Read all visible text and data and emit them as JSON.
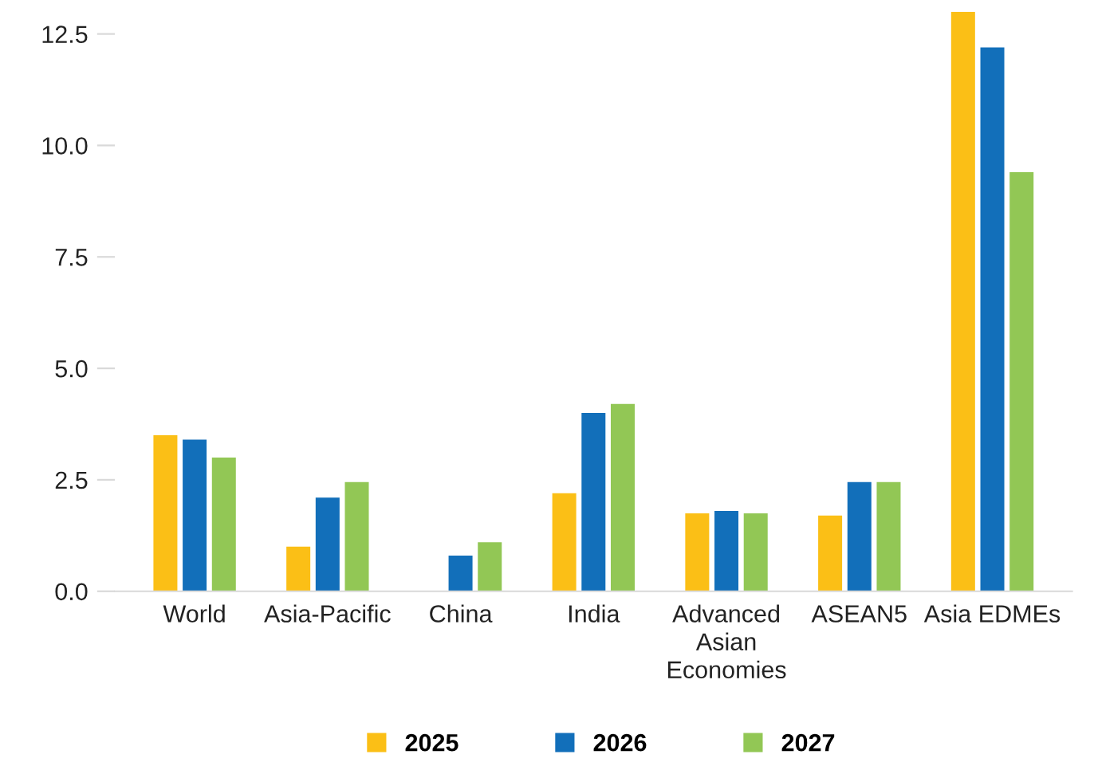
{
  "chart_data": {
    "type": "bar",
    "categories": [
      "World",
      "Asia-Pacific",
      "China",
      "India",
      "Advanced\nAsian\nEconomies",
      "ASEAN5",
      "Asia EDMEs"
    ],
    "series": [
      {
        "name": "2025",
        "color": "#fbbf16",
        "values": [
          3.5,
          1.0,
          null,
          2.2,
          1.75,
          1.7,
          13.0
        ]
      },
      {
        "name": "2026",
        "color": "#126fba",
        "values": [
          3.4,
          2.1,
          0.8,
          4.0,
          1.8,
          2.45,
          12.2
        ]
      },
      {
        "name": "2027",
        "color": "#92c755",
        "values": [
          3.0,
          2.45,
          1.1,
          4.2,
          1.75,
          2.45,
          9.4
        ]
      }
    ],
    "ylim": [
      0,
      13
    ],
    "yticks": [
      {
        "value": 0,
        "label": "0.0"
      },
      {
        "value": 2.5,
        "label": "2.5"
      },
      {
        "value": 5,
        "label": "5.0"
      },
      {
        "value": 7.5,
        "label": "7.5"
      },
      {
        "value": 10,
        "label": "10.0"
      },
      {
        "value": 12.5,
        "label": "12.5"
      }
    ],
    "grid": false,
    "legend": "bottom"
  }
}
